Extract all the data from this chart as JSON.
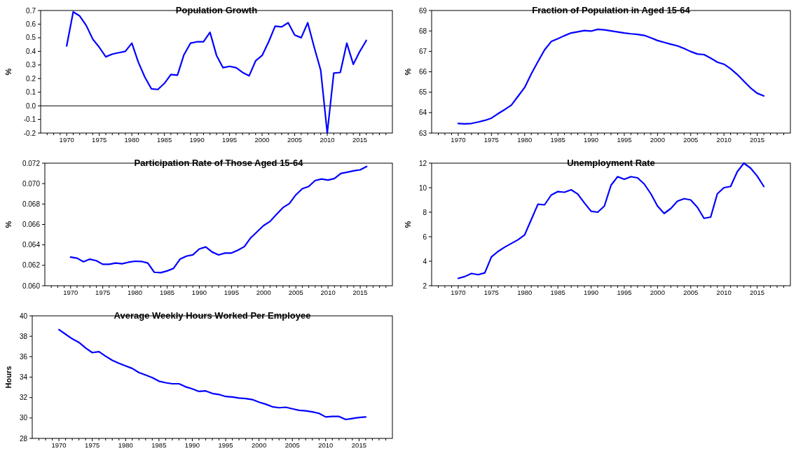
{
  "chart_data": [
    {
      "type": "line",
      "title": "Population Growth",
      "ylabel": "%",
      "xlim": [
        1966,
        2020
      ],
      "ylim": [
        -0.2,
        0.7
      ],
      "xticks": [
        1970,
        1975,
        1980,
        1985,
        1990,
        1995,
        2000,
        2005,
        2010,
        2015,
        {
          "value": 1967,
          "label": null
        },
        {
          "value": 1968,
          "label": null
        },
        {
          "value": 1969,
          "label": null
        },
        {
          "value": 1971,
          "label": null
        },
        {
          "value": 1972,
          "label": null
        },
        {
          "value": 1973,
          "label": null
        },
        {
          "value": 1974,
          "label": null
        },
        {
          "value": 1976,
          "label": null
        },
        {
          "value": 1977,
          "label": null
        },
        {
          "value": 1978,
          "label": null
        },
        {
          "value": 1979,
          "label": null
        },
        {
          "value": 1981,
          "label": null
        },
        {
          "value": 1982,
          "label": null
        },
        {
          "value": 1983,
          "label": null
        },
        {
          "value": 1984,
          "label": null
        },
        {
          "value": 1986,
          "label": null
        },
        {
          "value": 1987,
          "label": null
        },
        {
          "value": 1988,
          "label": null
        },
        {
          "value": 1989,
          "label": null
        },
        {
          "value": 1991,
          "label": null
        },
        {
          "value": 1992,
          "label": null
        },
        {
          "value": 1993,
          "label": null
        },
        {
          "value": 1994,
          "label": null
        },
        {
          "value": 1996,
          "label": null
        },
        {
          "value": 1997,
          "label": null
        },
        {
          "value": 1998,
          "label": null
        },
        {
          "value": 1999,
          "label": null
        },
        {
          "value": 2001,
          "label": null
        },
        {
          "value": 2002,
          "label": null
        },
        {
          "value": 2003,
          "label": null
        },
        {
          "value": 2004,
          "label": null
        },
        {
          "value": 2006,
          "label": null
        },
        {
          "value": 2007,
          "label": null
        },
        {
          "value": 2008,
          "label": null
        },
        {
          "value": 2009,
          "label": null
        },
        {
          "value": 2011,
          "label": null
        },
        {
          "value": 2012,
          "label": null
        },
        {
          "value": 2013,
          "label": null
        },
        {
          "value": 2014,
          "label": null
        },
        {
          "value": 2016,
          "label": null
        },
        {
          "value": 2017,
          "label": null
        },
        {
          "value": 2018,
          "label": null
        },
        {
          "value": 2019,
          "label": null
        }
      ],
      "yticks": [
        {
          "value": -0.2,
          "label": "-0.2"
        },
        {
          "value": -0.1,
          "label": "-0.1"
        },
        {
          "value": 0,
          "label": "0.0"
        },
        0.1,
        0.2,
        0.3,
        0.4,
        0.5,
        0.6,
        0.7
      ],
      "ref_lines": [
        {
          "axis": "y",
          "value": 0,
          "color": "#000000"
        }
      ],
      "x": [
        1970,
        1971,
        1972,
        1973,
        1974,
        1975,
        1976,
        1977,
        1978,
        1979,
        1980,
        1981,
        1982,
        1983,
        1984,
        1985,
        1986,
        1987,
        1988,
        1989,
        1990,
        1991,
        1992,
        1993,
        1994,
        1995,
        1996,
        1997,
        1998,
        1999,
        2000,
        2001,
        2002,
        2003,
        2004,
        2005,
        2006,
        2007,
        2008,
        2009,
        2010,
        2011,
        2012,
        2013,
        2014,
        2015,
        2016
      ],
      "series": [
        {
          "color": "#0000ff",
          "values": [
            0.44,
            0.69,
            0.66,
            0.59,
            0.49,
            0.43,
            0.36,
            0.38,
            0.39,
            0.4,
            0.46,
            0.32,
            0.21,
            0.125,
            0.12,
            0.165,
            0.23,
            0.225,
            0.375,
            0.46,
            0.47,
            0.47,
            0.54,
            0.37,
            0.28,
            0.29,
            0.28,
            0.245,
            0.22,
            0.33,
            0.37,
            0.47,
            0.585,
            0.58,
            0.61,
            0.52,
            0.5,
            0.61,
            0.43,
            0.26,
            -0.2,
            0.24,
            0.245,
            0.46,
            0.305,
            0.4,
            0.48
          ]
        }
      ]
    },
    {
      "type": "line",
      "title": "Fraction of Population in Aged 15-64",
      "ylabel": "%",
      "xlim": [
        1966,
        2020
      ],
      "ylim": [
        63,
        69
      ],
      "xticks": [
        1970,
        1975,
        1980,
        1985,
        1990,
        1995,
        2000,
        2005,
        2010,
        2015,
        {
          "value": 1967,
          "label": null
        },
        {
          "value": 1968,
          "label": null
        },
        {
          "value": 1969,
          "label": null
        },
        {
          "value": 1971,
          "label": null
        },
        {
          "value": 1972,
          "label": null
        },
        {
          "value": 1973,
          "label": null
        },
        {
          "value": 1974,
          "label": null
        },
        {
          "value": 1976,
          "label": null
        },
        {
          "value": 1977,
          "label": null
        },
        {
          "value": 1978,
          "label": null
        },
        {
          "value": 1979,
          "label": null
        },
        {
          "value": 1981,
          "label": null
        },
        {
          "value": 1982,
          "label": null
        },
        {
          "value": 1983,
          "label": null
        },
        {
          "value": 1984,
          "label": null
        },
        {
          "value": 1986,
          "label": null
        },
        {
          "value": 1987,
          "label": null
        },
        {
          "value": 1988,
          "label": null
        },
        {
          "value": 1989,
          "label": null
        },
        {
          "value": 1991,
          "label": null
        },
        {
          "value": 1992,
          "label": null
        },
        {
          "value": 1993,
          "label": null
        },
        {
          "value": 1994,
          "label": null
        },
        {
          "value": 1996,
          "label": null
        },
        {
          "value": 1997,
          "label": null
        },
        {
          "value": 1998,
          "label": null
        },
        {
          "value": 1999,
          "label": null
        },
        {
          "value": 2001,
          "label": null
        },
        {
          "value": 2002,
          "label": null
        },
        {
          "value": 2003,
          "label": null
        },
        {
          "value": 2004,
          "label": null
        },
        {
          "value": 2006,
          "label": null
        },
        {
          "value": 2007,
          "label": null
        },
        {
          "value": 2008,
          "label": null
        },
        {
          "value": 2009,
          "label": null
        },
        {
          "value": 2011,
          "label": null
        },
        {
          "value": 2012,
          "label": null
        },
        {
          "value": 2013,
          "label": null
        },
        {
          "value": 2014,
          "label": null
        },
        {
          "value": 2016,
          "label": null
        },
        {
          "value": 2017,
          "label": null
        },
        {
          "value": 2018,
          "label": null
        },
        {
          "value": 2019,
          "label": null
        }
      ],
      "yticks": [
        63,
        64,
        65,
        66,
        67,
        68,
        69
      ],
      "x": [
        1970,
        1971,
        1972,
        1973,
        1974,
        1975,
        1976,
        1977,
        1978,
        1979,
        1980,
        1981,
        1982,
        1983,
        1984,
        1985,
        1986,
        1987,
        1988,
        1989,
        1990,
        1991,
        1992,
        1993,
        1994,
        1995,
        1996,
        1997,
        1998,
        1999,
        2000,
        2001,
        2002,
        2003,
        2004,
        2005,
        2006,
        2007,
        2008,
        2009,
        2010,
        2011,
        2012,
        2013,
        2014,
        2015,
        2016
      ],
      "series": [
        {
          "color": "#0000ff",
          "values": [
            63.47,
            63.45,
            63.47,
            63.54,
            63.62,
            63.73,
            63.95,
            64.15,
            64.37,
            64.8,
            65.23,
            65.9,
            66.5,
            67.07,
            67.48,
            67.62,
            67.77,
            67.9,
            67.96,
            68.02,
            67.99,
            68.08,
            68.05,
            68.0,
            67.95,
            67.9,
            67.86,
            67.83,
            67.78,
            67.66,
            67.53,
            67.44,
            67.35,
            67.27,
            67.14,
            66.99,
            66.87,
            66.84,
            66.67,
            66.47,
            66.37,
            66.15,
            65.87,
            65.54,
            65.21,
            64.95,
            64.82
          ]
        }
      ]
    },
    {
      "type": "line",
      "title": "Participation Rate of Those Aged 15-64",
      "ylabel": "%",
      "xlim": [
        1966,
        2020
      ],
      "ylim": [
        0.06,
        0.072
      ],
      "xticks": [
        1970,
        1975,
        1980,
        1985,
        1990,
        1995,
        2000,
        2005,
        2010,
        2015,
        {
          "value": 1967,
          "label": null
        },
        {
          "value": 1968,
          "label": null
        },
        {
          "value": 1969,
          "label": null
        },
        {
          "value": 1971,
          "label": null
        },
        {
          "value": 1972,
          "label": null
        },
        {
          "value": 1973,
          "label": null
        },
        {
          "value": 1974,
          "label": null
        },
        {
          "value": 1976,
          "label": null
        },
        {
          "value": 1977,
          "label": null
        },
        {
          "value": 1978,
          "label": null
        },
        {
          "value": 1979,
          "label": null
        },
        {
          "value": 1981,
          "label": null
        },
        {
          "value": 1982,
          "label": null
        },
        {
          "value": 1983,
          "label": null
        },
        {
          "value": 1984,
          "label": null
        },
        {
          "value": 1986,
          "label": null
        },
        {
          "value": 1987,
          "label": null
        },
        {
          "value": 1988,
          "label": null
        },
        {
          "value": 1989,
          "label": null
        },
        {
          "value": 1991,
          "label": null
        },
        {
          "value": 1992,
          "label": null
        },
        {
          "value": 1993,
          "label": null
        },
        {
          "value": 1994,
          "label": null
        },
        {
          "value": 1996,
          "label": null
        },
        {
          "value": 1997,
          "label": null
        },
        {
          "value": 1998,
          "label": null
        },
        {
          "value": 1999,
          "label": null
        },
        {
          "value": 2001,
          "label": null
        },
        {
          "value": 2002,
          "label": null
        },
        {
          "value": 2003,
          "label": null
        },
        {
          "value": 2004,
          "label": null
        },
        {
          "value": 2006,
          "label": null
        },
        {
          "value": 2007,
          "label": null
        },
        {
          "value": 2008,
          "label": null
        },
        {
          "value": 2009,
          "label": null
        },
        {
          "value": 2011,
          "label": null
        },
        {
          "value": 2012,
          "label": null
        },
        {
          "value": 2013,
          "label": null
        },
        {
          "value": 2014,
          "label": null
        },
        {
          "value": 2016,
          "label": null
        },
        {
          "value": 2017,
          "label": null
        },
        {
          "value": 2018,
          "label": null
        },
        {
          "value": 2019,
          "label": null
        }
      ],
      "yticks": [
        {
          "value": 0.06,
          "label": "0.060"
        },
        {
          "value": 0.062,
          "label": "0.062"
        },
        {
          "value": 0.064,
          "label": "0.064"
        },
        {
          "value": 0.066,
          "label": "0.066"
        },
        {
          "value": 0.068,
          "label": "0.068"
        },
        {
          "value": 0.07,
          "label": "0.070"
        },
        {
          "value": 0.072,
          "label": "0.072"
        }
      ],
      "x": [
        1970,
        1971,
        1972,
        1973,
        1974,
        1975,
        1976,
        1977,
        1978,
        1979,
        1980,
        1981,
        1982,
        1983,
        1984,
        1985,
        1986,
        1987,
        1988,
        1989,
        1990,
        1991,
        1992,
        1993,
        1994,
        1995,
        1996,
        1997,
        1998,
        1999,
        2000,
        2001,
        2002,
        2003,
        2004,
        2005,
        2006,
        2007,
        2008,
        2009,
        2010,
        2011,
        2012,
        2013,
        2014,
        2015,
        2016
      ],
      "series": [
        {
          "color": "#0000ff",
          "values": [
            0.0628,
            0.0627,
            0.06235,
            0.0626,
            0.06245,
            0.0621,
            0.0621,
            0.06222,
            0.06215,
            0.0623,
            0.0624,
            0.06238,
            0.06222,
            0.06132,
            0.06128,
            0.06145,
            0.0617,
            0.0626,
            0.0629,
            0.06303,
            0.0636,
            0.0638,
            0.0633,
            0.06302,
            0.0632,
            0.0632,
            0.06348,
            0.06383,
            0.0647,
            0.0653,
            0.0659,
            0.0663,
            0.067,
            0.06765,
            0.06805,
            0.0689,
            0.0695,
            0.06972,
            0.0703,
            0.07045,
            0.07035,
            0.0705,
            0.071,
            0.07112,
            0.07125,
            0.07135,
            0.07168
          ]
        }
      ]
    },
    {
      "type": "line",
      "title": "Unemployment Rate",
      "ylabel": "%",
      "xlim": [
        1966,
        2020
      ],
      "ylim": [
        2,
        12
      ],
      "xticks": [
        1970,
        1975,
        1980,
        1985,
        1990,
        1995,
        2000,
        2005,
        2010,
        2015,
        {
          "value": 1967,
          "label": null
        },
        {
          "value": 1968,
          "label": null
        },
        {
          "value": 1969,
          "label": null
        },
        {
          "value": 1971,
          "label": null
        },
        {
          "value": 1972,
          "label": null
        },
        {
          "value": 1973,
          "label": null
        },
        {
          "value": 1974,
          "label": null
        },
        {
          "value": 1976,
          "label": null
        },
        {
          "value": 1977,
          "label": null
        },
        {
          "value": 1978,
          "label": null
        },
        {
          "value": 1979,
          "label": null
        },
        {
          "value": 1981,
          "label": null
        },
        {
          "value": 1982,
          "label": null
        },
        {
          "value": 1983,
          "label": null
        },
        {
          "value": 1984,
          "label": null
        },
        {
          "value": 1986,
          "label": null
        },
        {
          "value": 1987,
          "label": null
        },
        {
          "value": 1988,
          "label": null
        },
        {
          "value": 1989,
          "label": null
        },
        {
          "value": 1991,
          "label": null
        },
        {
          "value": 1992,
          "label": null
        },
        {
          "value": 1993,
          "label": null
        },
        {
          "value": 1994,
          "label": null
        },
        {
          "value": 1996,
          "label": null
        },
        {
          "value": 1997,
          "label": null
        },
        {
          "value": 1998,
          "label": null
        },
        {
          "value": 1999,
          "label": null
        },
        {
          "value": 2001,
          "label": null
        },
        {
          "value": 2002,
          "label": null
        },
        {
          "value": 2003,
          "label": null
        },
        {
          "value": 2004,
          "label": null
        },
        {
          "value": 2006,
          "label": null
        },
        {
          "value": 2007,
          "label": null
        },
        {
          "value": 2008,
          "label": null
        },
        {
          "value": 2009,
          "label": null
        },
        {
          "value": 2011,
          "label": null
        },
        {
          "value": 2012,
          "label": null
        },
        {
          "value": 2013,
          "label": null
        },
        {
          "value": 2014,
          "label": null
        },
        {
          "value": 2016,
          "label": null
        },
        {
          "value": 2017,
          "label": null
        },
        {
          "value": 2018,
          "label": null
        },
        {
          "value": 2019,
          "label": null
        }
      ],
      "yticks": [
        2,
        4,
        6,
        8,
        10,
        12
      ],
      "x": [
        1970,
        1971,
        1972,
        1973,
        1974,
        1975,
        1976,
        1977,
        1978,
        1979,
        1980,
        1981,
        1982,
        1983,
        1984,
        1985,
        1986,
        1987,
        1988,
        1989,
        1990,
        1991,
        1992,
        1993,
        1994,
        1995,
        1996,
        1997,
        1998,
        1999,
        2000,
        2001,
        2002,
        2003,
        2004,
        2005,
        2006,
        2007,
        2008,
        2009,
        2010,
        2011,
        2012,
        2013,
        2014,
        2015,
        2016
      ],
      "series": [
        {
          "color": "#0000ff",
          "values": [
            2.6,
            2.75,
            3.0,
            2.9,
            3.05,
            4.35,
            4.8,
            5.15,
            5.45,
            5.75,
            6.15,
            7.4,
            8.65,
            8.6,
            9.4,
            9.68,
            9.63,
            9.83,
            9.48,
            8.75,
            8.08,
            8.0,
            8.5,
            10.2,
            10.9,
            10.68,
            10.9,
            10.8,
            10.3,
            9.5,
            8.5,
            7.9,
            8.3,
            8.9,
            9.1,
            9.0,
            8.4,
            7.5,
            7.6,
            9.5,
            10.0,
            10.1,
            11.3,
            12.0,
            11.6,
            10.95,
            10.1
          ]
        }
      ]
    },
    {
      "type": "line",
      "title": "Average Weekly Hours Worked Per Employee",
      "ylabel": "Hours",
      "xlim": [
        1966,
        2020
      ],
      "ylim": [
        28,
        40
      ],
      "xticks": [
        1970,
        1975,
        1980,
        1985,
        1990,
        1995,
        2000,
        2005,
        2010,
        2015,
        {
          "value": 1967,
          "label": null
        },
        {
          "value": 1968,
          "label": null
        },
        {
          "value": 1969,
          "label": null
        },
        {
          "value": 1971,
          "label": null
        },
        {
          "value": 1972,
          "label": null
        },
        {
          "value": 1973,
          "label": null
        },
        {
          "value": 1974,
          "label": null
        },
        {
          "value": 1976,
          "label": null
        },
        {
          "value": 1977,
          "label": null
        },
        {
          "value": 1978,
          "label": null
        },
        {
          "value": 1979,
          "label": null
        },
        {
          "value": 1981,
          "label": null
        },
        {
          "value": 1982,
          "label": null
        },
        {
          "value": 1983,
          "label": null
        },
        {
          "value": 1984,
          "label": null
        },
        {
          "value": 1986,
          "label": null
        },
        {
          "value": 1987,
          "label": null
        },
        {
          "value": 1988,
          "label": null
        },
        {
          "value": 1989,
          "label": null
        },
        {
          "value": 1991,
          "label": null
        },
        {
          "value": 1992,
          "label": null
        },
        {
          "value": 1993,
          "label": null
        },
        {
          "value": 1994,
          "label": null
        },
        {
          "value": 1996,
          "label": null
        },
        {
          "value": 1997,
          "label": null
        },
        {
          "value": 1998,
          "label": null
        },
        {
          "value": 1999,
          "label": null
        },
        {
          "value": 2001,
          "label": null
        },
        {
          "value": 2002,
          "label": null
        },
        {
          "value": 2003,
          "label": null
        },
        {
          "value": 2004,
          "label": null
        },
        {
          "value": 2006,
          "label": null
        },
        {
          "value": 2007,
          "label": null
        },
        {
          "value": 2008,
          "label": null
        },
        {
          "value": 2009,
          "label": null
        },
        {
          "value": 2011,
          "label": null
        },
        {
          "value": 2012,
          "label": null
        },
        {
          "value": 2013,
          "label": null
        },
        {
          "value": 2014,
          "label": null
        },
        {
          "value": 2016,
          "label": null
        },
        {
          "value": 2017,
          "label": null
        },
        {
          "value": 2018,
          "label": null
        },
        {
          "value": 2019,
          "label": null
        }
      ],
      "yticks": [
        28,
        30,
        32,
        34,
        36,
        38,
        40
      ],
      "x": [
        1970,
        1971,
        1972,
        1973,
        1974,
        1975,
        1976,
        1977,
        1978,
        1979,
        1980,
        1981,
        1982,
        1983,
        1984,
        1985,
        1986,
        1987,
        1988,
        1989,
        1990,
        1991,
        1992,
        1993,
        1994,
        1995,
        1996,
        1997,
        1998,
        1999,
        2000,
        2001,
        2002,
        2003,
        2004,
        2005,
        2006,
        2007,
        2008,
        2009,
        2010,
        2011,
        2012,
        2013,
        2014,
        2015,
        2016
      ],
      "series": [
        {
          "color": "#0000ff",
          "values": [
            38.65,
            38.2,
            37.75,
            37.4,
            36.85,
            36.4,
            36.5,
            36.05,
            35.65,
            35.35,
            35.1,
            34.85,
            34.45,
            34.2,
            33.95,
            33.6,
            33.45,
            33.35,
            33.35,
            33.05,
            32.85,
            32.6,
            32.65,
            32.4,
            32.3,
            32.1,
            32.05,
            31.95,
            31.9,
            31.8,
            31.55,
            31.35,
            31.1,
            31.0,
            31.05,
            30.9,
            30.75,
            30.7,
            30.6,
            30.45,
            30.1,
            30.15,
            30.15,
            29.85,
            29.95,
            30.05,
            30.1
          ]
        }
      ]
    }
  ]
}
